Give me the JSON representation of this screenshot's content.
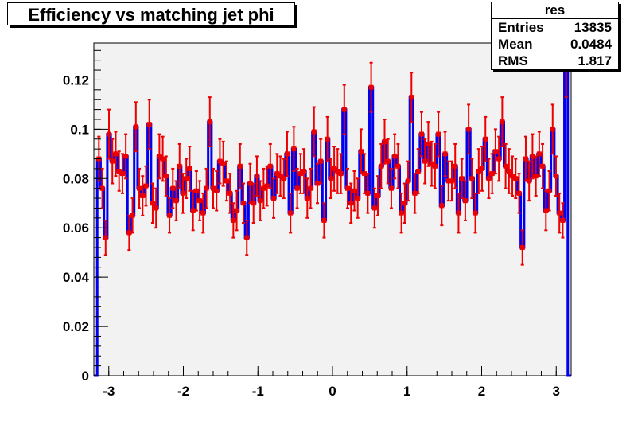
{
  "title": "Efficiency vs matching jet phi",
  "stats": {
    "name": "res",
    "rows": [
      {
        "label": "Entries",
        "value": "13835"
      },
      {
        "label": "Mean",
        "value": "0.0484"
      },
      {
        "label": "RMS",
        "value": "1.817"
      }
    ]
  },
  "colors": {
    "frame_fill": "#f2f2f2",
    "bar_stroke": "#0000ee",
    "marker": "#ee0000"
  },
  "chart_data": {
    "type": "histogram",
    "title": "Efficiency vs matching jet phi",
    "xlabel": "",
    "ylabel": "",
    "xlim": [
      -3.2,
      3.2
    ],
    "ylim": [
      0,
      0.135
    ],
    "x_ticks": [
      "-3",
      "-2",
      "-1",
      "0",
      "1",
      "2",
      "3"
    ],
    "y_ticks": [
      "0",
      "0.02",
      "0.04",
      "0.06",
      "0.08",
      "0.1",
      "0.12"
    ],
    "series": [
      {
        "bin_range": [
          -3.2,
          3.2
        ],
        "values": [
          0,
          0.088,
          0.076,
          0.056,
          0.098,
          0.087,
          0.09,
          0.083,
          0.082,
          0.089,
          0.058,
          0.065,
          0.101,
          0.076,
          0.073,
          0.077,
          0.102,
          0.07,
          0.068,
          0.089,
          0.088,
          0.081,
          0.065,
          0.076,
          0.071,
          0.085,
          0.074,
          0.08,
          0.084,
          0.067,
          0.075,
          0.071,
          0.066,
          0.076,
          0.103,
          0.076,
          0.075,
          0.087,
          0.086,
          0.079,
          0.074,
          0.063,
          0.067,
          0.085,
          0.07,
          0.056,
          0.078,
          0.07,
          0.081,
          0.071,
          0.076,
          0.077,
          0.085,
          0.072,
          0.082,
          0.081,
          0.08,
          0.09,
          0.066,
          0.092,
          0.076,
          0.082,
          0.083,
          0.072,
          0.076,
          0.099,
          0.078,
          0.087,
          0.063,
          0.096,
          0.08,
          0.084,
          0.083,
          0.082,
          0.108,
          0.076,
          0.07,
          0.075,
          0.072,
          0.091,
          0.082,
          0.074,
          0.117,
          0.068,
          0.073,
          0.085,
          0.095,
          0.087,
          0.076,
          0.089,
          0.085,
          0.066,
          0.07,
          0.079,
          0.113,
          0.074,
          0.083,
          0.098,
          0.087,
          0.094,
          0.086,
          0.085,
          0.098,
          0.069,
          0.09,
          0.079,
          0.079,
          0.085,
          0.066,
          0.08,
          0.071,
          0.1,
          0.08,
          0.066,
          0.083,
          0.084,
          0.096,
          0.08,
          0.082,
          0.091,
          0.088,
          0.103,
          0.085,
          0.083,
          0.081,
          0.08,
          0.074,
          0.052,
          0.088,
          0.079,
          0.089,
          0.081,
          0.09,
          0.085,
          0.067,
          0.075,
          0.1,
          0.081,
          0.066,
          0.063,
          0.125,
          0
        ],
        "errors": [
          0,
          0.009,
          0.008,
          0.007,
          0.01,
          0.009,
          0.009,
          0.008,
          0.008,
          0.009,
          0.007,
          0.007,
          0.01,
          0.008,
          0.008,
          0.008,
          0.01,
          0.008,
          0.008,
          0.009,
          0.009,
          0.008,
          0.007,
          0.008,
          0.008,
          0.009,
          0.008,
          0.008,
          0.009,
          0.008,
          0.008,
          0.008,
          0.008,
          0.008,
          0.01,
          0.008,
          0.008,
          0.009,
          0.009,
          0.008,
          0.008,
          0.007,
          0.008,
          0.009,
          0.008,
          0.007,
          0.008,
          0.008,
          0.008,
          0.008,
          0.008,
          0.008,
          0.009,
          0.008,
          0.008,
          0.008,
          0.008,
          0.009,
          0.008,
          0.009,
          0.008,
          0.008,
          0.009,
          0.008,
          0.008,
          0.01,
          0.008,
          0.009,
          0.007,
          0.009,
          0.008,
          0.009,
          0.009,
          0.008,
          0.01,
          0.008,
          0.008,
          0.008,
          0.008,
          0.009,
          0.008,
          0.008,
          0.01,
          0.008,
          0.008,
          0.009,
          0.009,
          0.009,
          0.008,
          0.009,
          0.009,
          0.008,
          0.008,
          0.008,
          0.01,
          0.008,
          0.009,
          0.009,
          0.009,
          0.009,
          0.009,
          0.009,
          0.009,
          0.008,
          0.009,
          0.008,
          0.008,
          0.009,
          0.008,
          0.008,
          0.008,
          0.01,
          0.008,
          0.008,
          0.009,
          0.009,
          0.009,
          0.008,
          0.008,
          0.009,
          0.009,
          0.01,
          0.009,
          0.009,
          0.008,
          0.008,
          0.008,
          0.007,
          0.009,
          0.008,
          0.009,
          0.008,
          0.009,
          0.009,
          0.008,
          0.008,
          0.01,
          0.008,
          0.008,
          0.007,
          0.012,
          0
        ]
      }
    ]
  }
}
